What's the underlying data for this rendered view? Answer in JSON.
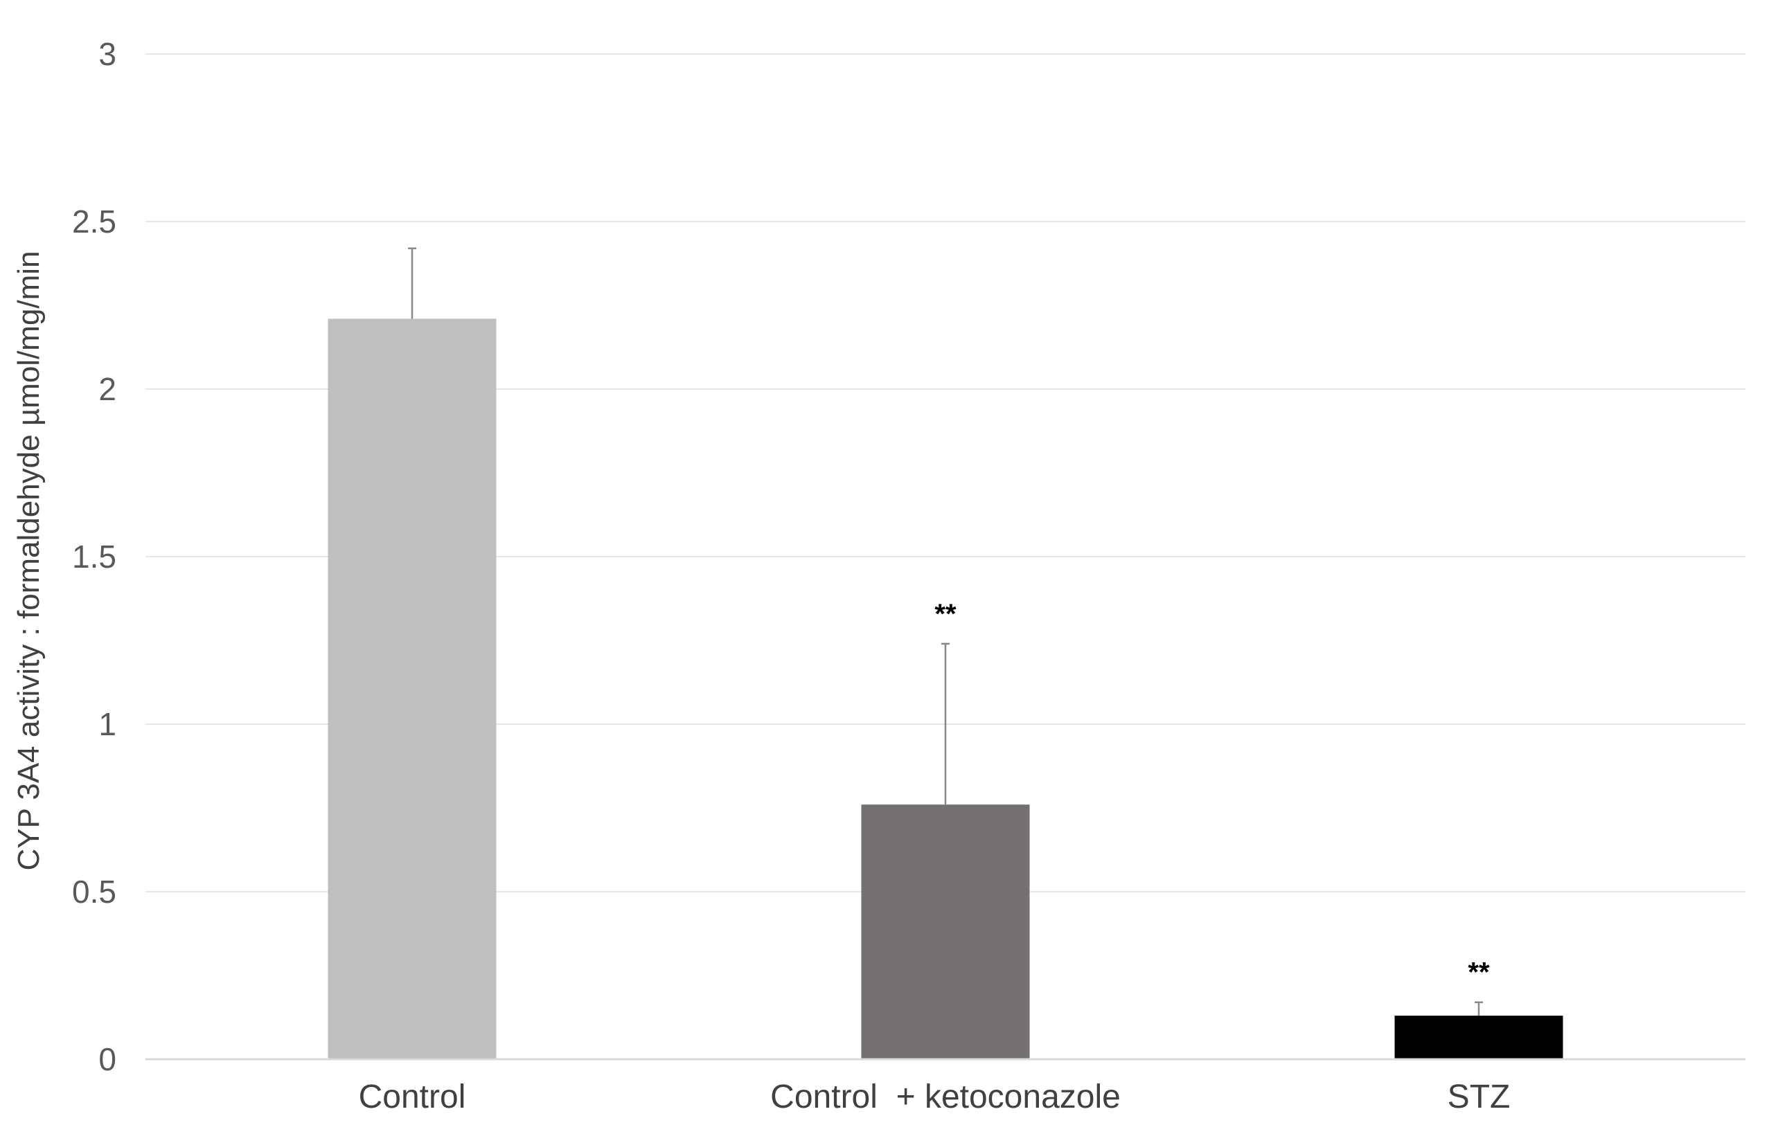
{
  "chart_data": {
    "type": "bar",
    "title": "",
    "xlabel": "",
    "ylabel": "CYP 3A4 activity : formaldehyde µmol/mg/min",
    "ylim": [
      0,
      3
    ],
    "yticks": [
      0,
      0.5,
      1,
      1.5,
      2,
      2.5,
      3
    ],
    "ytick_labels": [
      "0",
      "0.5",
      "1",
      "1.5",
      "2",
      "2.5",
      "3"
    ],
    "categories": [
      "Control",
      "Control  + ketoconazole",
      "STZ"
    ],
    "values": [
      2.21,
      0.76,
      0.13
    ],
    "error_upper": [
      0.21,
      0.48,
      0.04
    ],
    "bar_colors": [
      "#bfbfbf",
      "#767171",
      "#000000"
    ],
    "annotations": [
      "",
      "**",
      "**"
    ],
    "grid": true,
    "legend": "none"
  }
}
